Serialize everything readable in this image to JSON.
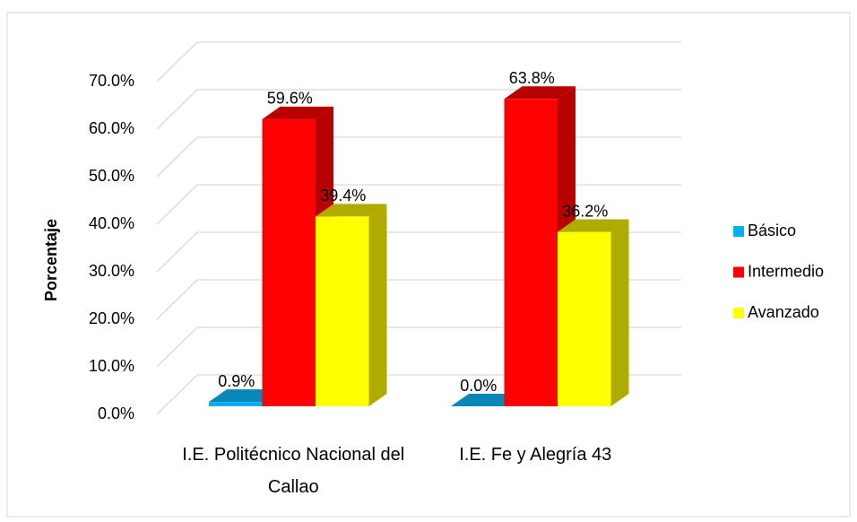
{
  "chart_data": {
    "type": "bar3d",
    "y_label": "Porcentaje",
    "categories": [
      "I.E. Politécnico Nacional del Callao",
      "I.E. Fe y Alegría 43"
    ],
    "series": [
      {
        "name": "Básico",
        "color": "#00b0f0",
        "side_color": "#0a86b8",
        "values": [
          0.9,
          0.0
        ],
        "value_labels": [
          "0.9%",
          "0.0%"
        ]
      },
      {
        "name": "Intermedio",
        "color": "#ff0000",
        "side_color": "#b80000",
        "values": [
          59.6,
          63.8
        ],
        "value_labels": [
          "59.6%",
          "63.8%"
        ]
      },
      {
        "name": "Avanzado",
        "color": "#ffff00",
        "side_color": "#b0ab00",
        "values": [
          39.4,
          36.2
        ],
        "value_labels": [
          "39.4%",
          "36.2%"
        ]
      }
    ],
    "ylim": [
      0,
      70
    ],
    "yticks": [
      {
        "value": 0,
        "label": "0.0%"
      },
      {
        "value": 10,
        "label": "10.0%"
      },
      {
        "value": 20,
        "label": "20.0%"
      },
      {
        "value": 30,
        "label": "30.0%"
      },
      {
        "value": 40,
        "label": "40.0%"
      },
      {
        "value": 50,
        "label": "50.0%"
      },
      {
        "value": 60,
        "label": "60.0%"
      },
      {
        "value": 70,
        "label": "70.0%"
      }
    ],
    "grid": true,
    "legend": "right"
  }
}
